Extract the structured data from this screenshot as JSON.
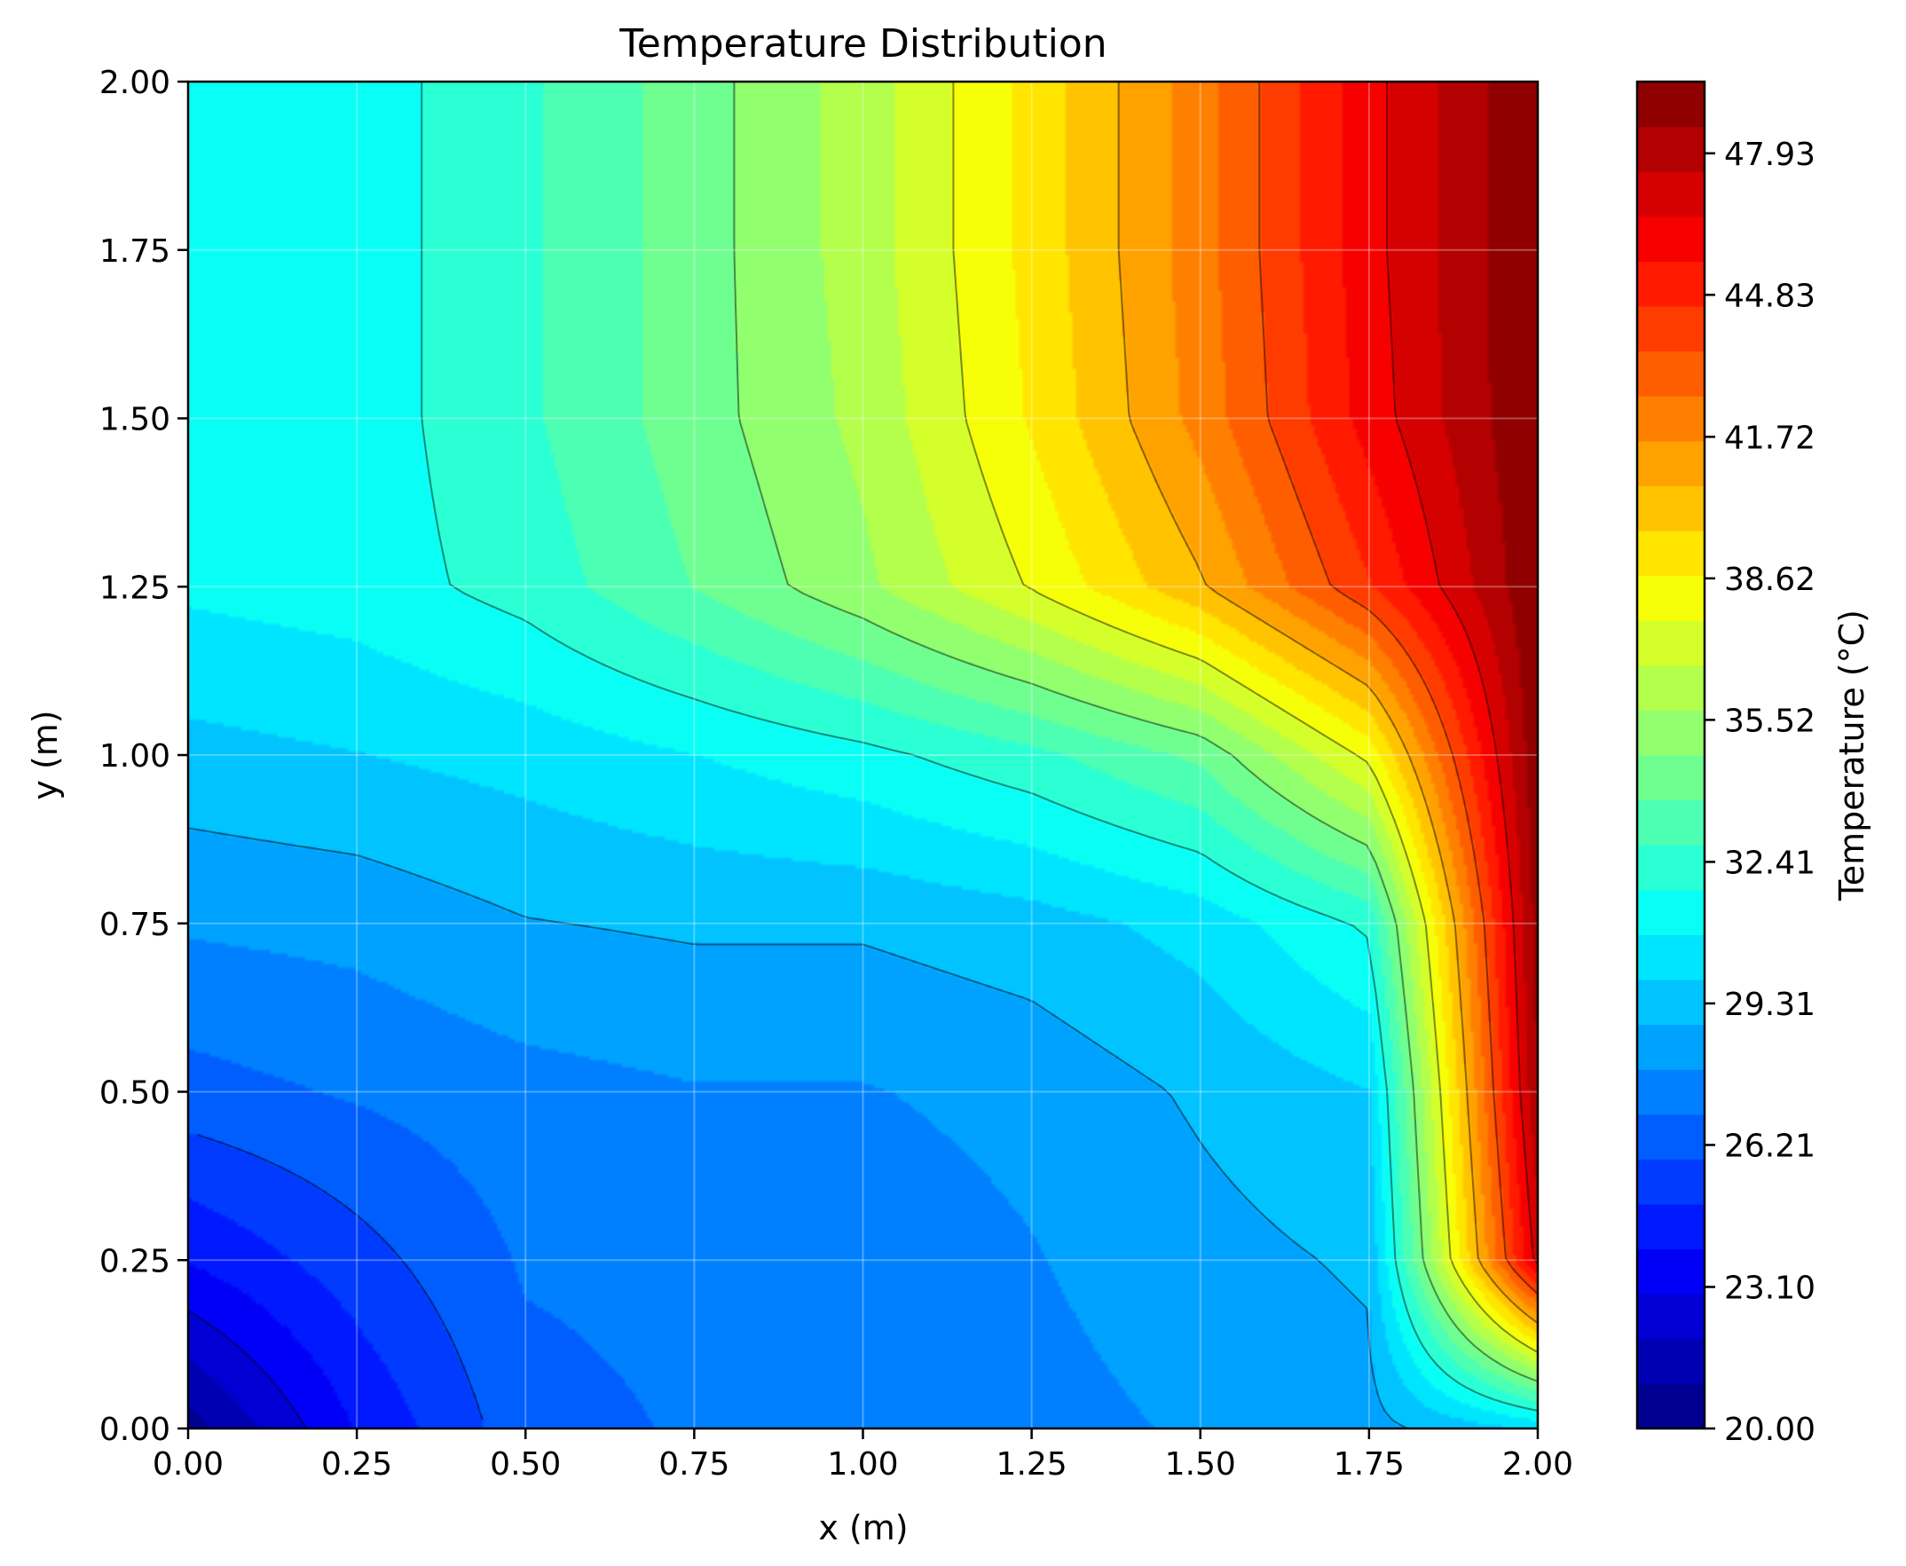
{
  "chart_data": {
    "type": "heatmap",
    "subtype": "filled-contour",
    "title": "Temperature Distribution",
    "xlabel": "x (m)",
    "ylabel": "y (m)",
    "xlim": [
      0,
      2
    ],
    "ylim": [
      0,
      2
    ],
    "x_ticks": [
      "0.00",
      "0.25",
      "0.50",
      "0.75",
      "1.00",
      "1.25",
      "1.50",
      "1.75",
      "2.00"
    ],
    "y_ticks": [
      "0.00",
      "0.25",
      "0.50",
      "0.75",
      "1.00",
      "1.25",
      "1.50",
      "1.75",
      "2.00"
    ],
    "grid": true,
    "colormap": "jet",
    "colorbar": {
      "label": "Temperature (°C)",
      "range": [
        20.0,
        49.5
      ],
      "ticks": [
        "20.00",
        "23.10",
        "26.21",
        "29.31",
        "32.41",
        "35.52",
        "38.62",
        "41.72",
        "44.83",
        "47.93"
      ],
      "levels": 30
    },
    "grid_x": [
      0,
      0.25,
      0.5,
      0.75,
      1.0,
      1.25,
      1.5,
      1.75,
      2.0
    ],
    "grid_y": [
      0,
      0.25,
      0.5,
      0.75,
      1.0,
      1.25,
      1.5,
      1.75,
      2.0
    ],
    "temperature": [
      [
        20.5,
        24.0,
        26.5,
        27.0,
        27.0,
        27.5,
        28.0,
        28.5,
        30.0
      ],
      [
        24.0,
        25.5,
        27.0,
        27.2,
        27.2,
        27.8,
        28.5,
        29.0,
        47.0
      ],
      [
        26.5,
        27.0,
        27.5,
        27.8,
        27.8,
        28.2,
        29.0,
        29.8,
        48.5
      ],
      [
        28.0,
        28.2,
        28.8,
        29.0,
        29.0,
        29.4,
        30.2,
        32.0,
        49.0
      ],
      [
        29.5,
        29.8,
        30.2,
        30.8,
        31.5,
        32.5,
        34.0,
        38.0,
        49.3
      ],
      [
        31.0,
        31.3,
        32.2,
        33.8,
        35.5,
        37.8,
        40.5,
        44.5,
        49.4
      ],
      [
        31.0,
        31.3,
        32.6,
        34.3,
        36.0,
        38.8,
        42.0,
        46.0,
        49.5
      ],
      [
        31.0,
        31.3,
        32.6,
        34.3,
        36.2,
        39.0,
        42.2,
        46.2,
        49.5
      ],
      [
        31.0,
        31.3,
        32.6,
        34.3,
        36.2,
        39.0,
        42.2,
        46.2,
        49.5
      ]
    ]
  }
}
